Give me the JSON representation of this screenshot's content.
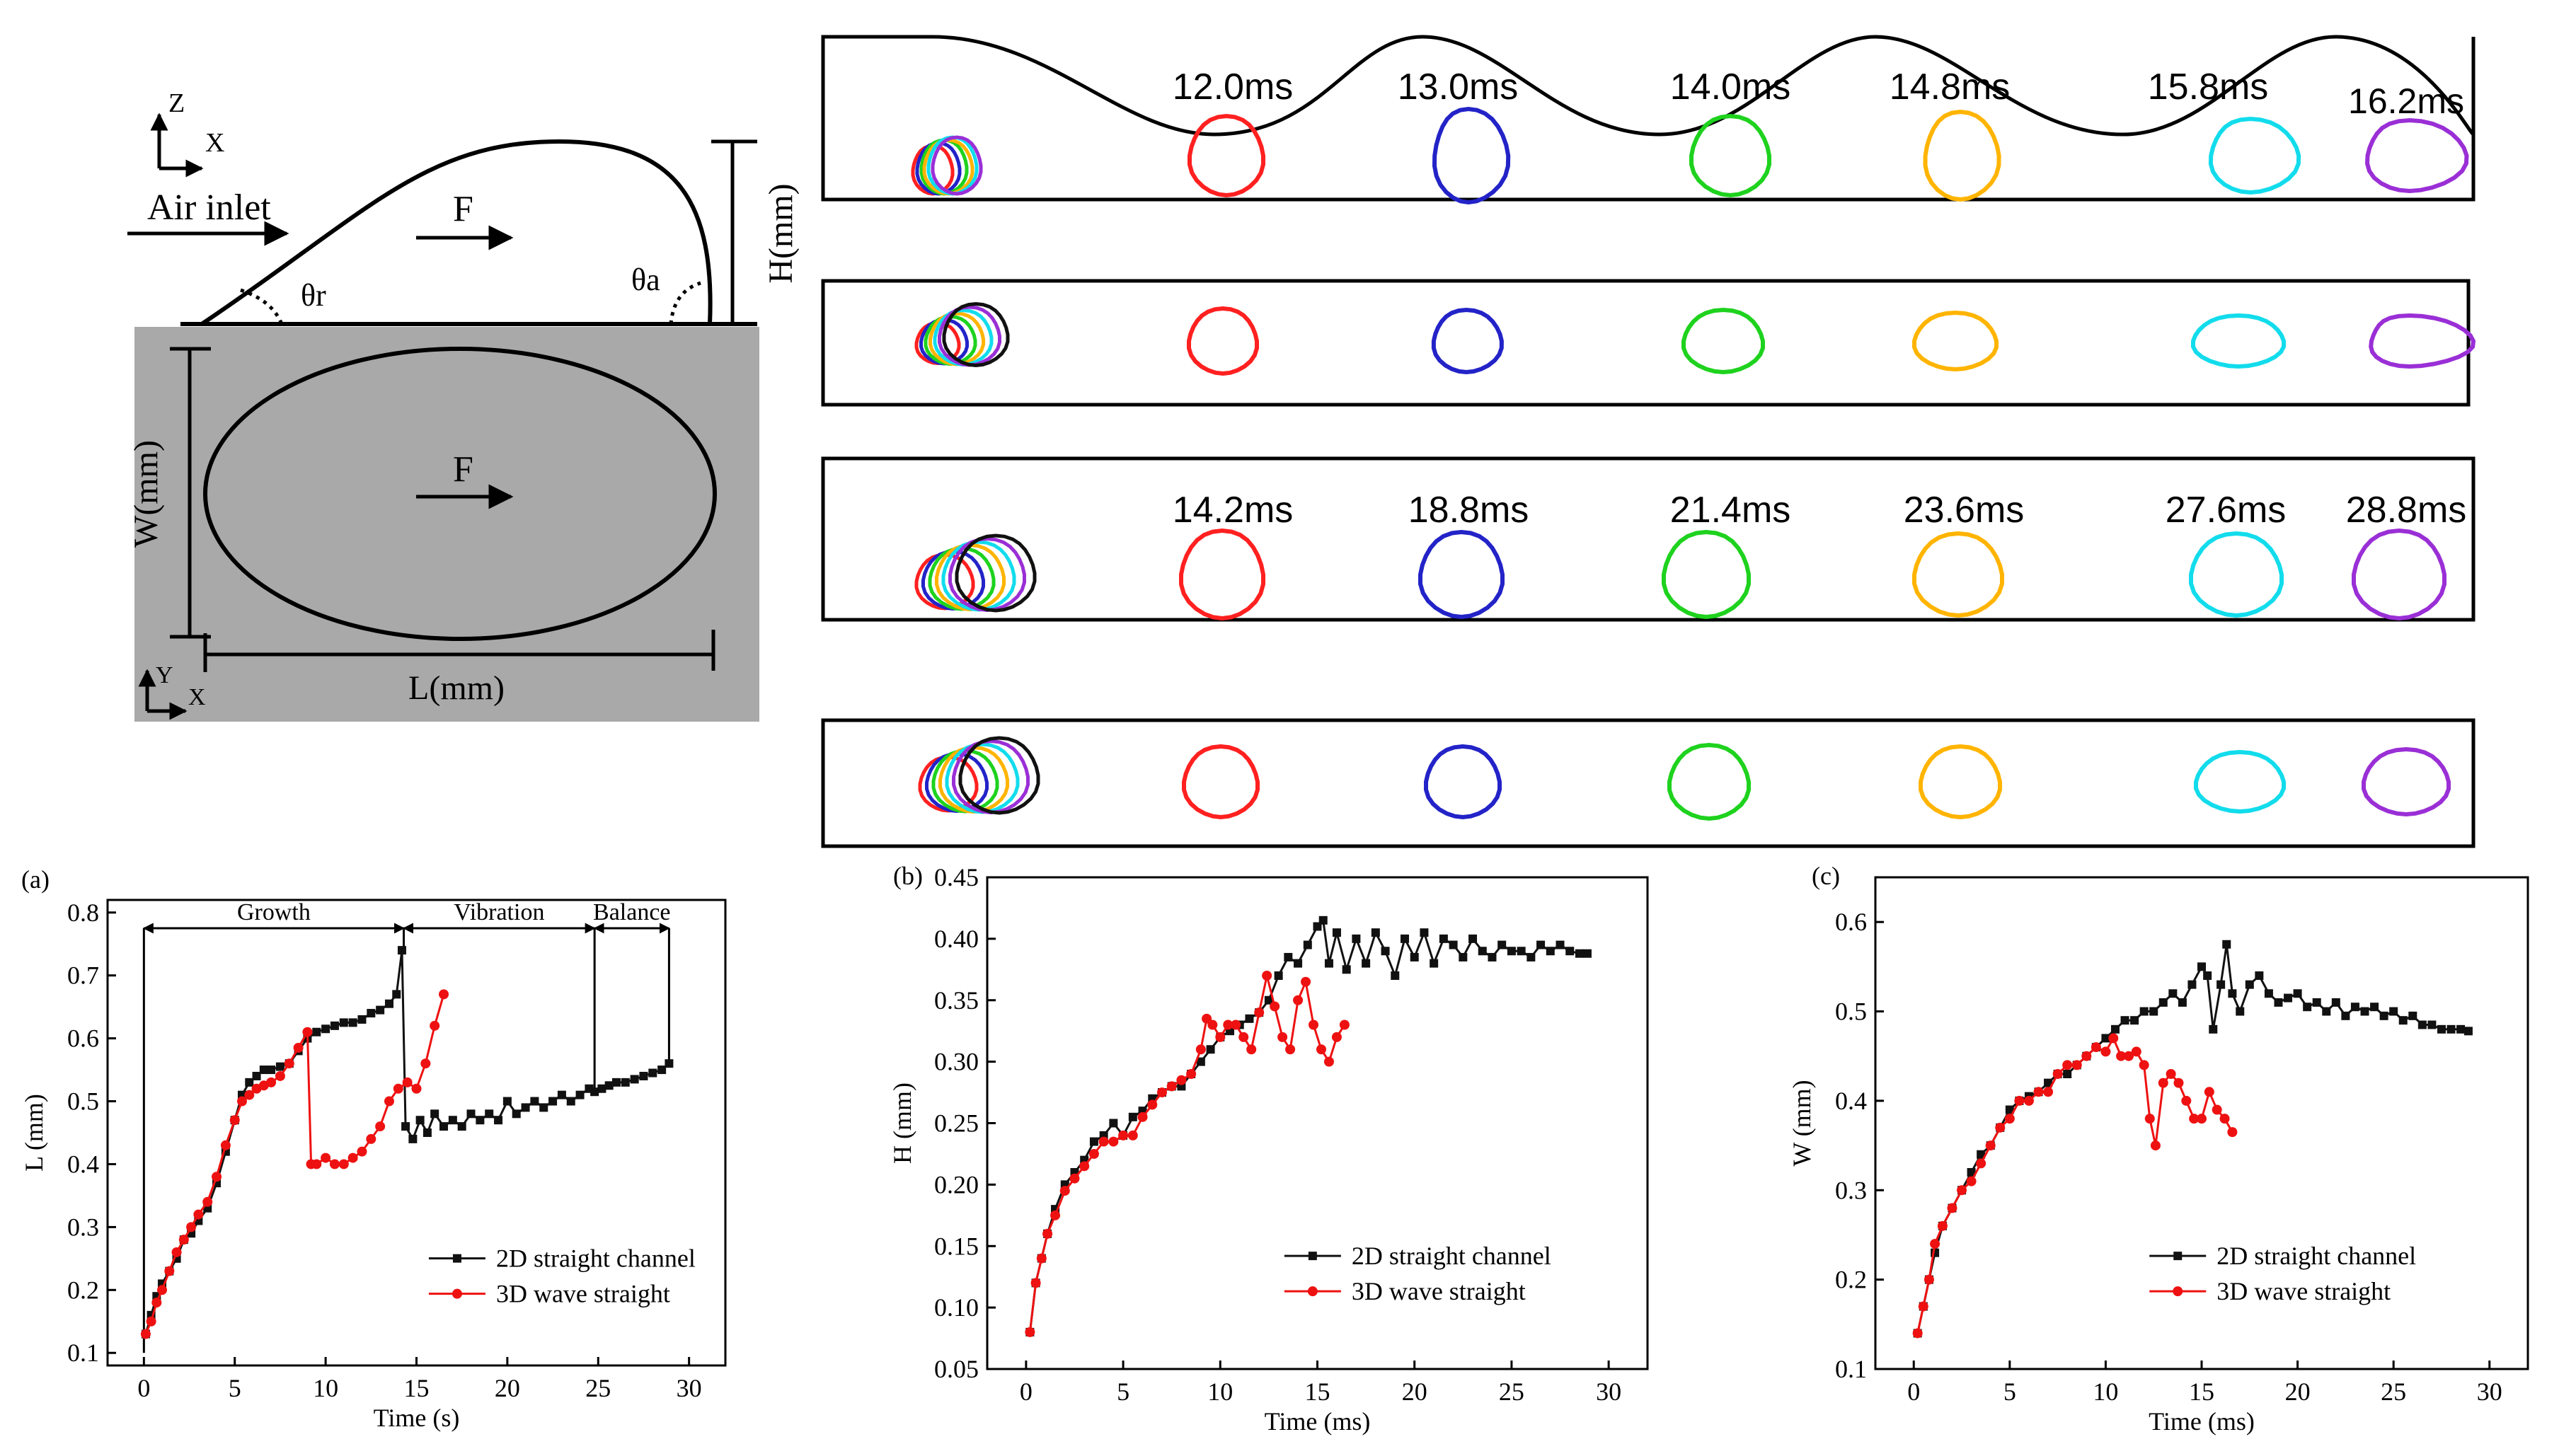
{
  "colors": {
    "red": "#ff2020",
    "blue": "#2323c8",
    "green": "#1ed21e",
    "orange": "#ffb400",
    "cyan": "#12dcec",
    "purple": "#9a2fd6",
    "black": "#111111",
    "gray": "#a9a9a9",
    "series_2d": "#111111",
    "series_3d": "#ee1111"
  },
  "schematic": {
    "axis_top": {
      "z": "Z",
      "x": "X"
    },
    "air_inlet": "Air inlet",
    "force_side": "F",
    "force_top": "F",
    "theta_r": "θr",
    "theta_a": "θa",
    "height_label": "H(mm)",
    "width_label": "W(mm)",
    "length_label": "L(mm)",
    "axis_bottom": {
      "y": "Y",
      "x": "X"
    }
  },
  "snapshots": {
    "row1_times": [
      "12.0ms",
      "13.0ms",
      "14.0ms",
      "14.8ms",
      "15.8ms",
      "16.2ms"
    ],
    "row3_times": [
      "14.2ms",
      "18.8ms",
      "21.4ms",
      "23.6ms",
      "27.6ms",
      "28.8ms"
    ]
  },
  "chart_data": [
    {
      "type": "line",
      "panel": "(a)",
      "xlabel": "Time (s)",
      "ylabel": "L (mm)",
      "xlim": [
        -2,
        32
      ],
      "ylim": [
        0.08,
        0.82
      ],
      "xticks": [
        0,
        5,
        10,
        15,
        20,
        25,
        30
      ],
      "yticks": [
        0.1,
        0.2,
        0.3,
        0.4,
        0.5,
        0.6,
        0.7,
        0.8
      ],
      "stages": [
        {
          "label": "Growth",
          "from": 0,
          "to": 14.3
        },
        {
          "label": "Vibration",
          "from": 14.3,
          "to": 24.8
        },
        {
          "label": "Balance",
          "from": 24.8,
          "to": 28.9
        }
      ],
      "legend_position": "bottom-right",
      "series": [
        {
          "name": "2D straight channel",
          "x": [
            0.1,
            0.4,
            0.7,
            1.0,
            1.4,
            1.8,
            2.2,
            2.6,
            3.0,
            3.5,
            4.0,
            4.5,
            5.0,
            5.4,
            5.8,
            6.2,
            6.6,
            7.0,
            7.5,
            8.0,
            8.5,
            9.0,
            9.5,
            10.0,
            10.5,
            11.0,
            11.5,
            12.0,
            12.5,
            13.0,
            13.5,
            13.9,
            14.2,
            14.4,
            14.8,
            15.2,
            15.6,
            16.0,
            16.5,
            17.0,
            17.5,
            18.0,
            18.5,
            19.0,
            19.5,
            20.0,
            20.5,
            21.0,
            21.5,
            22.0,
            22.5,
            23.0,
            23.5,
            24.0,
            24.5,
            24.8,
            25.2,
            25.6,
            26.0,
            26.5,
            27.0,
            27.5,
            28.0,
            28.5,
            28.9
          ],
          "y": [
            0.13,
            0.16,
            0.19,
            0.21,
            0.23,
            0.25,
            0.28,
            0.29,
            0.31,
            0.33,
            0.37,
            0.42,
            0.47,
            0.51,
            0.53,
            0.54,
            0.55,
            0.55,
            0.555,
            0.56,
            0.58,
            0.6,
            0.61,
            0.615,
            0.62,
            0.625,
            0.625,
            0.63,
            0.64,
            0.645,
            0.655,
            0.67,
            0.74,
            0.46,
            0.44,
            0.47,
            0.45,
            0.48,
            0.46,
            0.47,
            0.46,
            0.48,
            0.47,
            0.48,
            0.47,
            0.5,
            0.48,
            0.49,
            0.5,
            0.49,
            0.5,
            0.51,
            0.5,
            0.51,
            0.52,
            0.515,
            0.52,
            0.525,
            0.53,
            0.53,
            0.535,
            0.54,
            0.545,
            0.55,
            0.56
          ]
        },
        {
          "name": "3D wave straight",
          "x": [
            0.1,
            0.4,
            0.7,
            1.0,
            1.4,
            1.8,
            2.2,
            2.6,
            3.0,
            3.5,
            4.0,
            4.5,
            5.0,
            5.4,
            5.8,
            6.2,
            6.6,
            7.0,
            7.5,
            8.0,
            8.5,
            9.0,
            9.2,
            9.5,
            10.0,
            10.5,
            11.0,
            11.5,
            12.0,
            12.5,
            13.0,
            13.5,
            14.0,
            14.5,
            15.0,
            15.5,
            16.0,
            16.5
          ],
          "y": [
            0.13,
            0.15,
            0.18,
            0.2,
            0.23,
            0.26,
            0.28,
            0.3,
            0.32,
            0.34,
            0.38,
            0.43,
            0.47,
            0.5,
            0.51,
            0.52,
            0.525,
            0.53,
            0.54,
            0.56,
            0.585,
            0.61,
            0.4,
            0.4,
            0.41,
            0.4,
            0.4,
            0.41,
            0.42,
            0.44,
            0.46,
            0.5,
            0.52,
            0.53,
            0.52,
            0.56,
            0.62,
            0.67
          ]
        }
      ]
    },
    {
      "type": "line",
      "panel": "(b)",
      "xlabel": "Time (ms)",
      "ylabel": "H (mm)",
      "xlim": [
        -2,
        32
      ],
      "ylim": [
        0.05,
        0.45
      ],
      "xticks": [
        0,
        5,
        10,
        15,
        20,
        25,
        30
      ],
      "yticks": [
        0.05,
        0.1,
        0.15,
        0.2,
        0.25,
        0.3,
        0.35,
        0.4,
        0.45
      ],
      "legend_position": "bottom-right",
      "series": [
        {
          "name": "2D straight channel",
          "x": [
            0.2,
            0.5,
            0.8,
            1.1,
            1.5,
            2.0,
            2.5,
            3.0,
            3.5,
            4.0,
            4.5,
            5.0,
            5.5,
            6.0,
            6.5,
            7.0,
            7.5,
            8.0,
            8.5,
            9.0,
            9.5,
            10.0,
            10.5,
            11.0,
            11.5,
            12.0,
            12.5,
            13.0,
            13.5,
            14.0,
            14.5,
            15.0,
            15.3,
            15.6,
            16.0,
            16.5,
            17.0,
            17.5,
            18.0,
            18.5,
            19.0,
            19.5,
            20.0,
            20.5,
            21.0,
            21.5,
            22.0,
            22.5,
            23.0,
            23.5,
            24.0,
            24.5,
            25.0,
            25.5,
            26.0,
            26.5,
            27.0,
            27.5,
            28.0,
            28.5,
            28.9
          ],
          "y": [
            0.08,
            0.12,
            0.14,
            0.16,
            0.18,
            0.2,
            0.21,
            0.22,
            0.235,
            0.24,
            0.25,
            0.24,
            0.255,
            0.26,
            0.27,
            0.275,
            0.28,
            0.28,
            0.29,
            0.3,
            0.31,
            0.32,
            0.325,
            0.33,
            0.335,
            0.34,
            0.35,
            0.37,
            0.385,
            0.38,
            0.395,
            0.41,
            0.415,
            0.38,
            0.405,
            0.375,
            0.4,
            0.38,
            0.405,
            0.39,
            0.37,
            0.4,
            0.385,
            0.405,
            0.38,
            0.4,
            0.395,
            0.385,
            0.4,
            0.39,
            0.385,
            0.395,
            0.39,
            0.39,
            0.385,
            0.395,
            0.39,
            0.395,
            0.39,
            0.388,
            0.388
          ]
        },
        {
          "name": "3D wave straight",
          "x": [
            0.2,
            0.5,
            0.8,
            1.1,
            1.5,
            2.0,
            2.5,
            3.0,
            3.5,
            4.0,
            4.5,
            5.0,
            5.5,
            6.0,
            6.5,
            7.0,
            7.5,
            8.0,
            8.5,
            9.0,
            9.3,
            9.6,
            10.0,
            10.4,
            10.8,
            11.2,
            11.6,
            12.0,
            12.4,
            12.8,
            13.2,
            13.6,
            14.0,
            14.4,
            14.8,
            15.2,
            15.6,
            16.0,
            16.4
          ],
          "y": [
            0.08,
            0.12,
            0.14,
            0.16,
            0.175,
            0.195,
            0.205,
            0.215,
            0.225,
            0.235,
            0.235,
            0.24,
            0.24,
            0.255,
            0.265,
            0.275,
            0.28,
            0.285,
            0.29,
            0.31,
            0.335,
            0.33,
            0.32,
            0.33,
            0.33,
            0.32,
            0.31,
            0.34,
            0.37,
            0.345,
            0.32,
            0.31,
            0.35,
            0.365,
            0.33,
            0.31,
            0.3,
            0.32,
            0.33
          ]
        }
      ]
    },
    {
      "type": "line",
      "panel": "(c)",
      "xlabel": "Time (ms)",
      "ylabel": "W (mm)",
      "xlim": [
        -2,
        32
      ],
      "ylim": [
        0.1,
        0.65
      ],
      "xticks": [
        0,
        5,
        10,
        15,
        20,
        25,
        30
      ],
      "yticks": [
        0.1,
        0.2,
        0.3,
        0.4,
        0.5,
        0.6
      ],
      "legend_position": "bottom-right",
      "series": [
        {
          "name": "2D straight channel",
          "x": [
            0.2,
            0.5,
            0.8,
            1.1,
            1.5,
            2.0,
            2.5,
            3.0,
            3.5,
            4.0,
            4.5,
            5.0,
            5.5,
            6.0,
            6.5,
            7.0,
            7.5,
            8.0,
            8.5,
            9.0,
            9.5,
            10.0,
            10.5,
            11.0,
            11.5,
            12.0,
            12.5,
            13.0,
            13.5,
            14.0,
            14.5,
            15.0,
            15.3,
            15.6,
            16.0,
            16.3,
            16.6,
            17.0,
            17.5,
            18.0,
            18.5,
            19.0,
            19.5,
            20.0,
            20.5,
            21.0,
            21.5,
            22.0,
            22.5,
            23.0,
            23.5,
            24.0,
            24.5,
            25.0,
            25.5,
            26.0,
            26.5,
            27.0,
            27.5,
            28.0,
            28.5,
            28.9
          ],
          "y": [
            0.14,
            0.17,
            0.2,
            0.23,
            0.26,
            0.28,
            0.3,
            0.32,
            0.34,
            0.35,
            0.37,
            0.39,
            0.4,
            0.405,
            0.41,
            0.42,
            0.43,
            0.43,
            0.44,
            0.45,
            0.46,
            0.47,
            0.48,
            0.49,
            0.49,
            0.5,
            0.5,
            0.51,
            0.52,
            0.51,
            0.53,
            0.55,
            0.54,
            0.48,
            0.53,
            0.575,
            0.52,
            0.5,
            0.53,
            0.54,
            0.52,
            0.51,
            0.515,
            0.52,
            0.505,
            0.51,
            0.5,
            0.51,
            0.495,
            0.505,
            0.5,
            0.505,
            0.495,
            0.5,
            0.49,
            0.495,
            0.485,
            0.485,
            0.48,
            0.48,
            0.48,
            0.478
          ]
        },
        {
          "name": "3D wave straight",
          "x": [
            0.2,
            0.5,
            0.8,
            1.1,
            1.5,
            2.0,
            2.5,
            3.0,
            3.5,
            4.0,
            4.5,
            5.0,
            5.5,
            6.0,
            6.5,
            7.0,
            7.5,
            8.0,
            8.5,
            9.0,
            9.5,
            10.0,
            10.4,
            10.8,
            11.2,
            11.6,
            12.0,
            12.3,
            12.6,
            13.0,
            13.4,
            13.8,
            14.2,
            14.6,
            15.0,
            15.4,
            15.8,
            16.2,
            16.6
          ],
          "y": [
            0.14,
            0.17,
            0.2,
            0.24,
            0.26,
            0.28,
            0.3,
            0.31,
            0.33,
            0.35,
            0.37,
            0.38,
            0.4,
            0.4,
            0.41,
            0.41,
            0.43,
            0.44,
            0.44,
            0.45,
            0.46,
            0.455,
            0.47,
            0.45,
            0.45,
            0.455,
            0.44,
            0.38,
            0.35,
            0.42,
            0.43,
            0.42,
            0.4,
            0.38,
            0.38,
            0.41,
            0.39,
            0.38,
            0.365
          ]
        }
      ]
    }
  ],
  "panel_labels": {
    "a": "(a)",
    "b": "(b)",
    "c": "(c)"
  }
}
